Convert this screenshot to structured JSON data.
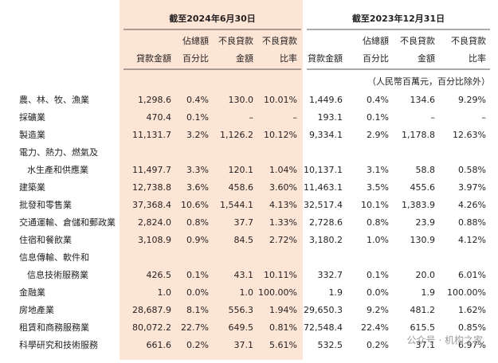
{
  "header": {
    "unit_note": "（人民幣百萬元，百分比除外）"
  },
  "groups": [
    {
      "title": "截至2024年6月30日",
      "columns": [
        [
          "貸款金額"
        ],
        [
          "佔總額",
          "百分比"
        ],
        [
          "不良貸款",
          "金額"
        ],
        [
          "不良貸款",
          "比率"
        ]
      ]
    },
    {
      "title": "截至2023年12月31日",
      "columns": [
        [
          "貸款金額"
        ],
        [
          "佔總額",
          "百分比"
        ],
        [
          "不良貸款",
          "金額"
        ],
        [
          "不良貸款",
          "比率"
        ]
      ]
    }
  ],
  "table": {
    "rows": [
      [
        "農、林、牧、漁業",
        "1,298.6",
        "0.4%",
        "130.0",
        "10.01%",
        "1,449.6",
        "0.4%",
        "134.6",
        "9.29%"
      ],
      [
        "採礦業",
        "470.4",
        "0.1%",
        "–",
        "–",
        "193.1",
        "0.1%",
        "–",
        "–"
      ],
      [
        "製造業",
        "11,131.7",
        "3.2%",
        "1,126.2",
        "10.12%",
        "9,334.1",
        "2.9%",
        "1,178.8",
        "12.63%"
      ],
      [
        "電力、熱力、燃氣及"
      ],
      [
        "水生產和供應業",
        "11,497.7",
        "3.3%",
        "120.1",
        "1.04%",
        "10,137.1",
        "3.1%",
        "58.8",
        "0.58%"
      ],
      [
        "建築業",
        "12,738.8",
        "3.6%",
        "458.6",
        "3.60%",
        "11,463.1",
        "3.5%",
        "455.6",
        "3.97%"
      ],
      [
        "批發和零售業",
        "37,368.4",
        "10.6%",
        "1,544.1",
        "4.13%",
        "32,517.4",
        "10.1%",
        "1,383.9",
        "4.26%"
      ],
      [
        "交通運輸、倉儲和郵政業",
        "2,824.0",
        "0.8%",
        "37.7",
        "1.33%",
        "2,728.6",
        "0.8%",
        "23.9",
        "0.88%"
      ],
      [
        "住宿和餐飲業",
        "3,108.9",
        "0.9%",
        "84.5",
        "2.72%",
        "3,180.2",
        "1.0%",
        "130.9",
        "4.12%"
      ],
      [
        "信息傳輸、軟件和"
      ],
      [
        "信息技術服務業",
        "426.5",
        "0.1%",
        "43.1",
        "10.11%",
        "332.7",
        "0.1%",
        "20.0",
        "6.01%"
      ],
      [
        "金融業",
        "1.0",
        "0.0%",
        "1.0",
        "100.00%",
        "1.9",
        "0.0%",
        "1.9",
        "100.00%"
      ],
      [
        "房地產業",
        "28,687.9",
        "8.1%",
        "556.3",
        "1.94%",
        "29,650.3",
        "9.2%",
        "481.2",
        "1.62%"
      ],
      [
        "租賃和商務服務業",
        "80,072.2",
        "22.7%",
        "649.5",
        "0.81%",
        "72,548.4",
        "22.4%",
        "615.5",
        "0.85%"
      ],
      [
        "科學研究和技術服務",
        "661.6",
        "0.2%",
        "37.1",
        "5.61%",
        "532.5",
        "0.2%",
        "37.1",
        "6.97%"
      ]
    ]
  },
  "watermark": "公众号 · 机构之家"
}
